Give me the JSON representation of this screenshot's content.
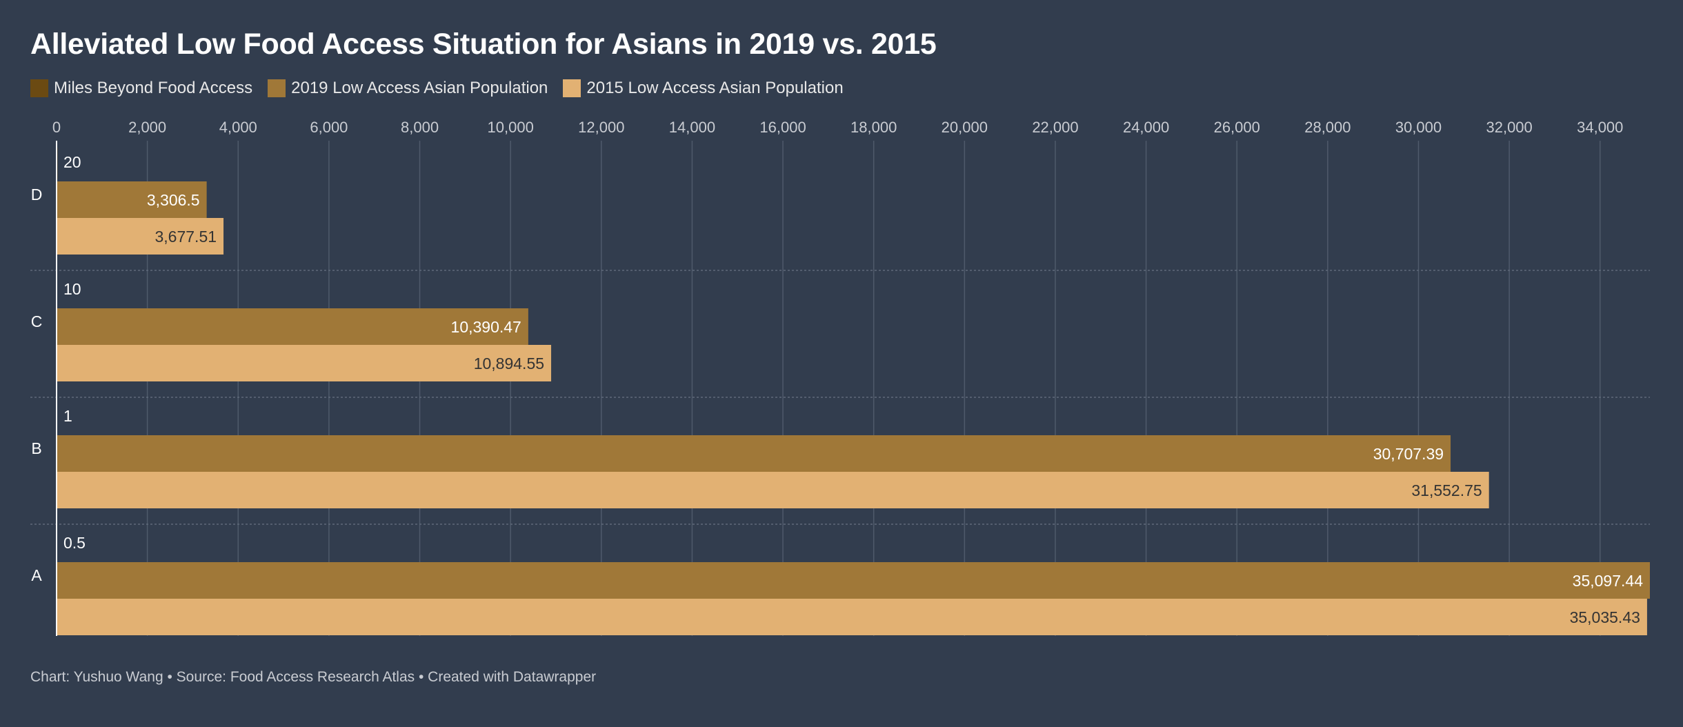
{
  "title": "Alleviated Low Food Access Situation for Asians in 2019 vs. 2015",
  "footer": "Chart: Yushuo Wang • Source: Food Access Research Atlas • Created with Datawrapper",
  "colors": {
    "background": "#323d4e",
    "miles": "#6b4a12",
    "pop2019": "#a07838",
    "pop2015": "#e2b173",
    "grid": "#4f5a6b"
  },
  "legend": [
    {
      "label": "Miles Beyond Food Access",
      "color": "#6b4a12"
    },
    {
      "label": "2019 Low Access Asian Population",
      "color": "#a07838"
    },
    {
      "label": "2015 Low Access Asian Population",
      "color": "#e2b173"
    }
  ],
  "chart_data": {
    "type": "bar",
    "orientation": "horizontal",
    "title": "Alleviated Low Food Access Situation for Asians in 2019 vs. 2015",
    "xlim": [
      0,
      35097.44
    ],
    "xticks": [
      0,
      2000,
      4000,
      6000,
      8000,
      10000,
      12000,
      14000,
      16000,
      18000,
      20000,
      22000,
      24000,
      26000,
      28000,
      30000,
      32000,
      34000
    ],
    "xtick_labels": [
      "0",
      "2,000",
      "4,000",
      "6,000",
      "8,000",
      "10,000",
      "12,000",
      "14,000",
      "16,000",
      "18,000",
      "20,000",
      "22,000",
      "24,000",
      "26,000",
      "28,000",
      "30,000",
      "32,000",
      "34,000"
    ],
    "grid": true,
    "legend_position": "top-left",
    "categories": [
      "D",
      "C",
      "B",
      "A"
    ],
    "series": [
      {
        "name": "Miles Beyond Food Access",
        "values": [
          20,
          10,
          1,
          0.5
        ],
        "labels": [
          "20",
          "10",
          "1",
          "0.5"
        ]
      },
      {
        "name": "2019 Low Access Asian Population",
        "values": [
          3306.5,
          10390.47,
          30707.39,
          35097.44
        ],
        "labels": [
          "3,306.5",
          "10,390.47",
          "30,707.39",
          "35,097.44"
        ]
      },
      {
        "name": "2015 Low Access Asian Population",
        "values": [
          3677.51,
          10894.55,
          31552.75,
          35035.43
        ],
        "labels": [
          "3,677.51",
          "10,894.55",
          "31,552.75",
          "35,035.43"
        ]
      }
    ]
  }
}
